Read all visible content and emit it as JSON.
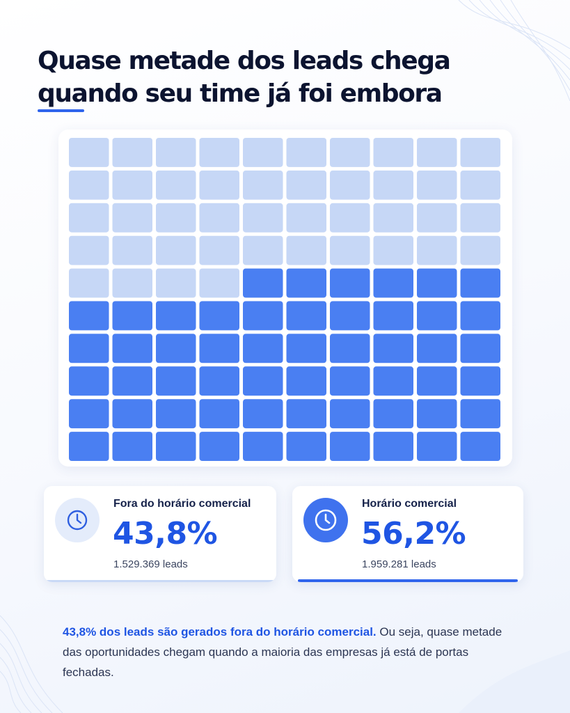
{
  "title": {
    "line1": "Quase metade dos leads chega",
    "line2": "quando seu time já foi embora"
  },
  "colors": {
    "accent": "#2f64ec",
    "cell_inside": "#4a7ff2",
    "cell_outside": "#c6d7f6",
    "value_text": "#1f55e3"
  },
  "chart_data": {
    "type": "waffle",
    "grid": {
      "rows": 10,
      "columns": 10
    },
    "fill_order": "bottom-up, right-to-left",
    "series": [
      {
        "name": "Horário comercial",
        "cells": 56
      },
      {
        "name": "Fora do horário comercial",
        "cells": 44
      }
    ]
  },
  "stats": {
    "outside": {
      "label": "Fora do horário comercial",
      "value": "43,8%",
      "leads": "1.529.369 leads",
      "icon": "clock-icon"
    },
    "inside": {
      "label": "Horário comercial",
      "value": "56,2%",
      "leads": "1.959.281 leads",
      "icon": "clock-icon"
    }
  },
  "summary": {
    "highlight": "43,8% dos leads são gerados fora do horário comercial.",
    "rest": " Ou seja, quase metade das oportunidades chegam quando a maioria das empresas já está de portas fechadas."
  }
}
